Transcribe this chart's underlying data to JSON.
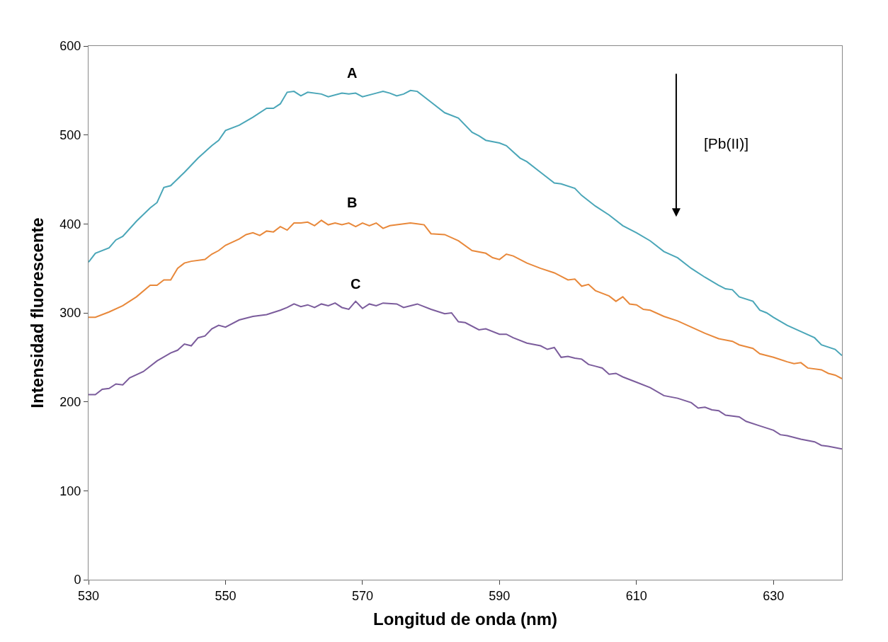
{
  "chart_data": {
    "type": "line",
    "xlabel": "Longitud de onda (nm)",
    "ylabel": "Intensidad fluorescente",
    "xlim": [
      530,
      640
    ],
    "xticks": [
      530,
      550,
      570,
      590,
      610,
      630
    ],
    "ylim": [
      0,
      600
    ],
    "yticks": [
      0,
      100,
      200,
      300,
      400,
      500,
      600
    ],
    "legend": false,
    "marker": "none",
    "line_style": "solid",
    "annotations": [
      "[Pb(II)]"
    ],
    "series": [
      {
        "name": "A",
        "color": "#4aa6b8",
        "x": [
          530,
          531,
          533,
          534,
          535,
          537,
          539,
          540,
          541,
          542,
          544,
          546,
          548,
          549,
          550,
          552,
          554,
          556,
          557,
          558,
          559,
          560,
          561,
          562,
          564,
          565,
          567,
          568,
          569,
          570,
          572,
          573,
          574,
          575,
          576,
          577,
          578,
          580,
          582,
          584,
          586,
          587,
          588,
          590,
          591,
          593,
          594,
          596,
          598,
          599,
          601,
          602,
          604,
          606,
          608,
          610,
          612,
          614,
          616,
          618,
          620,
          622,
          623,
          624,
          625,
          627,
          628,
          629,
          630,
          632,
          634,
          636,
          637,
          639,
          640
        ],
        "values": [
          357,
          367,
          373,
          382,
          386,
          403,
          418,
          424,
          441,
          443,
          458,
          474,
          488,
          494,
          505,
          511,
          520,
          530,
          530,
          535,
          548,
          549,
          544,
          548,
          546,
          543,
          547,
          546,
          547,
          543,
          547,
          549,
          547,
          544,
          546,
          550,
          549,
          537,
          525,
          519,
          503,
          499,
          494,
          491,
          488,
          474,
          470,
          458,
          446,
          445,
          440,
          432,
          420,
          410,
          398,
          390,
          381,
          369,
          362,
          350,
          340,
          331,
          327,
          326,
          318,
          313,
          303,
          300,
          295,
          286,
          279,
          272,
          264,
          259,
          252
        ]
      },
      {
        "name": "B",
        "color": "#e8883a",
        "x": [
          530,
          531,
          533,
          535,
          537,
          539,
          540,
          541,
          542,
          543,
          544,
          545,
          547,
          548,
          549,
          550,
          552,
          553,
          554,
          555,
          556,
          557,
          558,
          559,
          560,
          561,
          562,
          563,
          564,
          565,
          566,
          567,
          568,
          569,
          570,
          571,
          572,
          573,
          574,
          576,
          577,
          578,
          579,
          580,
          582,
          584,
          586,
          588,
          589,
          590,
          591,
          592,
          594,
          596,
          598,
          599,
          600,
          601,
          602,
          603,
          604,
          606,
          607,
          608,
          609,
          610,
          611,
          612,
          614,
          616,
          618,
          620,
          622,
          624,
          625,
          627,
          628,
          630,
          632,
          633,
          634,
          635,
          637,
          638,
          639,
          640
        ],
        "values": [
          295,
          295,
          301,
          308,
          318,
          331,
          331,
          337,
          337,
          350,
          356,
          358,
          360,
          366,
          370,
          376,
          383,
          388,
          390,
          387,
          392,
          391,
          397,
          393,
          401,
          401,
          402,
          398,
          404,
          399,
          401,
          399,
          401,
          397,
          401,
          398,
          401,
          395,
          398,
          400,
          401,
          400,
          399,
          389,
          388,
          381,
          370,
          367,
          362,
          360,
          366,
          364,
          356,
          350,
          345,
          341,
          337,
          338,
          330,
          332,
          325,
          319,
          313,
          318,
          310,
          309,
          304,
          303,
          296,
          291,
          284,
          277,
          271,
          268,
          264,
          260,
          254,
          250,
          245,
          243,
          244,
          238,
          236,
          232,
          230,
          226
        ]
      },
      {
        "name": "C",
        "color": "#7b5c9c",
        "x": [
          530,
          531,
          532,
          533,
          534,
          535,
          536,
          538,
          540,
          542,
          543,
          544,
          545,
          546,
          547,
          548,
          549,
          550,
          552,
          554,
          556,
          558,
          559,
          560,
          561,
          562,
          563,
          564,
          565,
          566,
          567,
          568,
          569,
          570,
          571,
          572,
          573,
          575,
          576,
          577,
          578,
          580,
          582,
          583,
          584,
          585,
          587,
          588,
          590,
          591,
          592,
          594,
          596,
          597,
          598,
          599,
          600,
          601,
          602,
          603,
          604,
          605,
          606,
          607,
          608,
          610,
          612,
          614,
          616,
          618,
          619,
          620,
          621,
          622,
          623,
          625,
          626,
          628,
          630,
          631,
          632,
          634,
          636,
          637,
          638,
          640
        ],
        "values": [
          208,
          208,
          214,
          215,
          220,
          219,
          227,
          234,
          246,
          255,
          258,
          265,
          263,
          272,
          274,
          282,
          286,
          284,
          292,
          296,
          298,
          303,
          306,
          310,
          307,
          309,
          306,
          310,
          308,
          311,
          306,
          304,
          313,
          305,
          310,
          308,
          311,
          310,
          306,
          308,
          310,
          304,
          299,
          300,
          290,
          289,
          281,
          282,
          276,
          276,
          272,
          266,
          263,
          259,
          261,
          250,
          251,
          249,
          248,
          242,
          240,
          238,
          231,
          232,
          228,
          222,
          216,
          207,
          204,
          199,
          193,
          194,
          191,
          190,
          185,
          183,
          178,
          173,
          168,
          163,
          162,
          158,
          155,
          151,
          150,
          147
        ]
      }
    ]
  }
}
